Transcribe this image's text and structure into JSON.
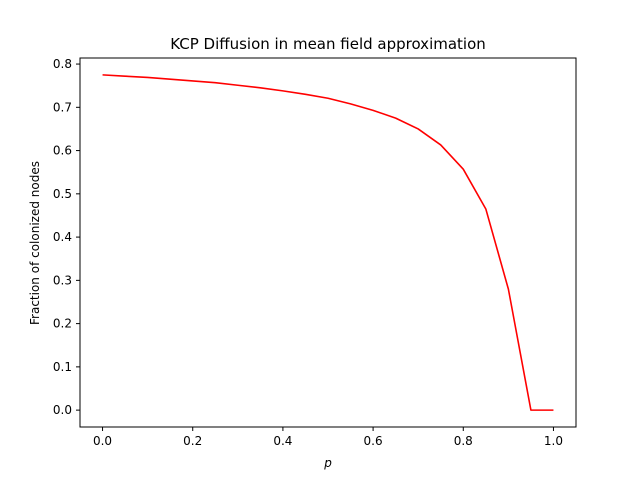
{
  "chart_data": {
    "type": "line",
    "title": "KCP Diffusion in mean field approximation",
    "xlabel": "p",
    "ylabel": "Fraction of colonized nodes",
    "xlim": [
      -0.05,
      1.05
    ],
    "ylim": [
      -0.039,
      0.814
    ],
    "grid": false,
    "x_ticks": [
      0.0,
      0.2,
      0.4,
      0.6,
      0.8,
      1.0
    ],
    "x_tick_labels": [
      "0.0",
      "0.2",
      "0.4",
      "0.6",
      "0.8",
      "1.0"
    ],
    "y_ticks": [
      0.0,
      0.1,
      0.2,
      0.3,
      0.4,
      0.5,
      0.6,
      0.7,
      0.8
    ],
    "y_tick_labels": [
      "0.0",
      "0.1",
      "0.2",
      "0.3",
      "0.4",
      "0.5",
      "0.6",
      "0.7",
      "0.8"
    ],
    "series": [
      {
        "color": "#ff0000",
        "x": [
          0.0,
          0.05,
          0.1,
          0.15,
          0.2,
          0.25,
          0.3,
          0.35,
          0.4,
          0.45,
          0.5,
          0.55,
          0.6,
          0.65,
          0.7,
          0.75,
          0.8,
          0.85,
          0.9,
          0.95,
          1.0
        ],
        "y": [
          0.775,
          0.772,
          0.769,
          0.765,
          0.761,
          0.757,
          0.751,
          0.745,
          0.738,
          0.73,
          0.721,
          0.708,
          0.693,
          0.675,
          0.65,
          0.613,
          0.557,
          0.465,
          0.28,
          0.0,
          0.0
        ]
      }
    ]
  }
}
